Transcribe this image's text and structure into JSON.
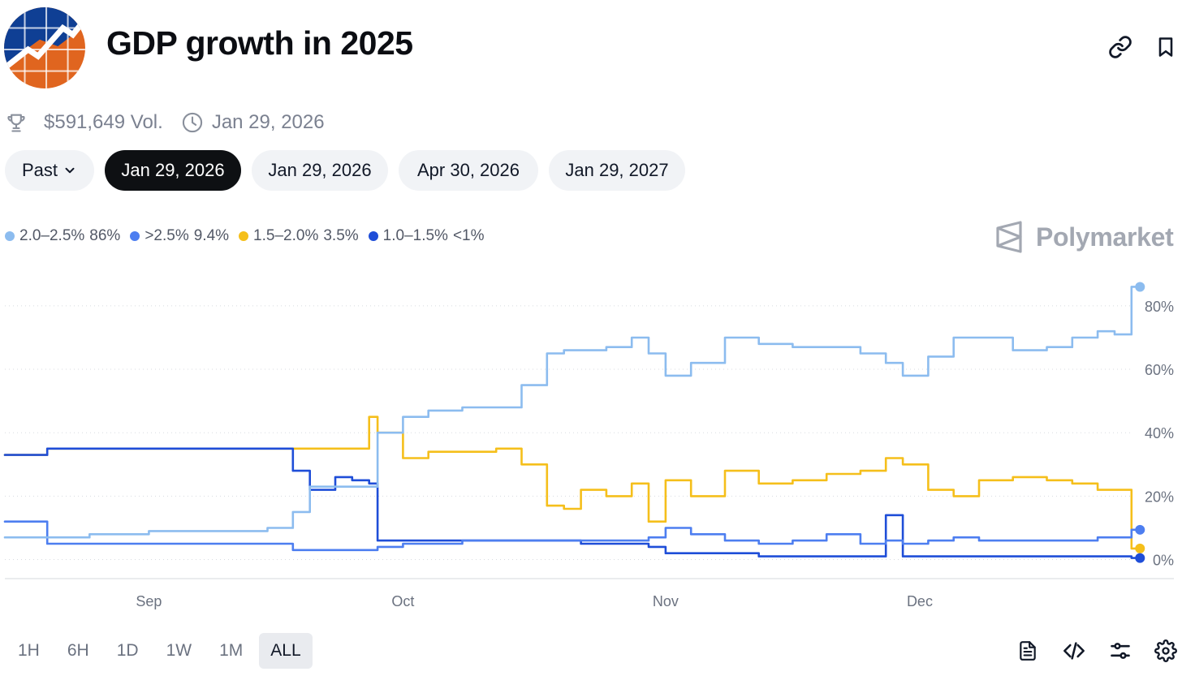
{
  "header": {
    "title": "GDP growth in 2025",
    "logo_icon": "chart-growth-logo",
    "link_icon": "link-icon",
    "bookmark_icon": "bookmark-icon"
  },
  "meta": {
    "volume": "$591,649 Vol.",
    "date": "Jan 29, 2026",
    "trophy_icon": "trophy-icon",
    "clock_icon": "clock-icon"
  },
  "tabs": [
    {
      "label": "Past",
      "active": false,
      "dropdown": true
    },
    {
      "label": "Jan 29, 2026",
      "active": true
    },
    {
      "label": "Jan 29, 2026",
      "active": false
    },
    {
      "label": "Apr 30, 2026",
      "active": false
    },
    {
      "label": "Jan 29, 2027",
      "active": false
    }
  ],
  "legend": [
    {
      "name": "2.0–2.5%",
      "value": "86%",
      "color": "#8cbcef"
    },
    {
      "name": ">2.5%",
      "value": "9.4%",
      "color": "#4d7ef0"
    },
    {
      "name": "1.5–2.0%",
      "value": "3.5%",
      "color": "#f5bf1b"
    },
    {
      "name": "1.0–1.5%",
      "value": "<1%",
      "color": "#1f4ed8"
    }
  ],
  "brand": "Polymarket",
  "ranges": [
    {
      "label": "1H",
      "active": false
    },
    {
      "label": "6H",
      "active": false
    },
    {
      "label": "1D",
      "active": false
    },
    {
      "label": "1W",
      "active": false
    },
    {
      "label": "1M",
      "active": false
    },
    {
      "label": "ALL",
      "active": true
    }
  ],
  "tools": [
    "document-icon",
    "code-icon",
    "sliders-icon",
    "gear-icon"
  ],
  "chart_data": {
    "type": "line",
    "title": "",
    "xlabel": "",
    "ylabel": "",
    "x": [
      "2025-08-15",
      "2025-08-20",
      "2025-08-25",
      "2025-09-01",
      "2025-09-05",
      "2025-09-10",
      "2025-09-15",
      "2025-09-18",
      "2025-09-20",
      "2025-09-23",
      "2025-09-25",
      "2025-09-27",
      "2025-09-28",
      "2025-10-01",
      "2025-10-04",
      "2025-10-08",
      "2025-10-12",
      "2025-10-15",
      "2025-10-18",
      "2025-10-20",
      "2025-10-22",
      "2025-10-25",
      "2025-10-28",
      "2025-10-30",
      "2025-11-01",
      "2025-11-04",
      "2025-11-08",
      "2025-11-12",
      "2025-11-16",
      "2025-11-20",
      "2025-11-24",
      "2025-11-27",
      "2025-11-29",
      "2025-12-02",
      "2025-12-05",
      "2025-12-08",
      "2025-12-12",
      "2025-12-16",
      "2025-12-19",
      "2025-12-22",
      "2025-12-24",
      "2025-12-26",
      "2025-12-27"
    ],
    "x_ticks": [
      "Sep",
      "Oct",
      "Nov",
      "Dec"
    ],
    "x_tick_dates": [
      "2025-09-01",
      "2025-10-01",
      "2025-11-01",
      "2025-12-01"
    ],
    "x_range": [
      "2025-08-15",
      "2025-12-31"
    ],
    "y_ticks": [
      "0%",
      "20%",
      "40%",
      "60%",
      "80%"
    ],
    "y_tick_values": [
      0,
      20,
      40,
      60,
      80
    ],
    "ylim": [
      -6,
      92
    ],
    "grid": true,
    "legend_position": "top-left",
    "series": [
      {
        "name": "2.0–2.5%",
        "color": "#8cbcef",
        "values": [
          7,
          7,
          8,
          9,
          9,
          9,
          10,
          15,
          23,
          23,
          23,
          23,
          40,
          45,
          47,
          48,
          48,
          55,
          65,
          66,
          66,
          67,
          70,
          65,
          58,
          62,
          70,
          68,
          67,
          67,
          65,
          62,
          58,
          64,
          70,
          70,
          66,
          67,
          70,
          72,
          71,
          86,
          86
        ]
      },
      {
        "name": ">2.5%",
        "color": "#4d7ef0",
        "values": [
          12,
          5,
          5,
          5,
          5,
          5,
          5,
          3,
          3,
          3,
          3,
          3,
          4,
          5,
          5,
          6,
          6,
          6,
          6,
          6,
          6,
          6,
          6,
          7,
          10,
          8,
          6,
          5,
          6,
          8,
          5,
          6,
          5,
          6,
          7,
          6,
          6,
          6,
          6,
          7,
          7,
          9.4,
          9.4
        ]
      },
      {
        "name": "1.5–2.0%",
        "color": "#f5bf1b",
        "values": [
          33,
          35,
          35,
          35,
          35,
          35,
          35,
          35,
          35,
          35,
          35,
          45,
          40,
          32,
          34,
          34,
          35,
          30,
          17,
          16,
          22,
          20,
          24,
          12,
          25,
          20,
          28,
          24,
          25,
          27,
          28,
          32,
          30,
          22,
          20,
          25,
          26,
          25,
          24,
          22,
          22,
          3.5,
          3.5
        ]
      },
      {
        "name": "1.0–1.5%",
        "color": "#1f4ed8",
        "values": [
          33,
          35,
          35,
          35,
          35,
          35,
          35,
          28,
          22,
          26,
          25,
          24,
          6,
          6,
          6,
          6,
          6,
          6,
          6,
          6,
          5,
          5,
          5,
          4,
          2,
          2,
          2,
          1,
          1,
          1,
          1,
          14,
          1,
          1,
          1,
          1,
          1,
          1,
          1,
          1,
          1,
          0.5,
          0.5
        ]
      }
    ]
  }
}
